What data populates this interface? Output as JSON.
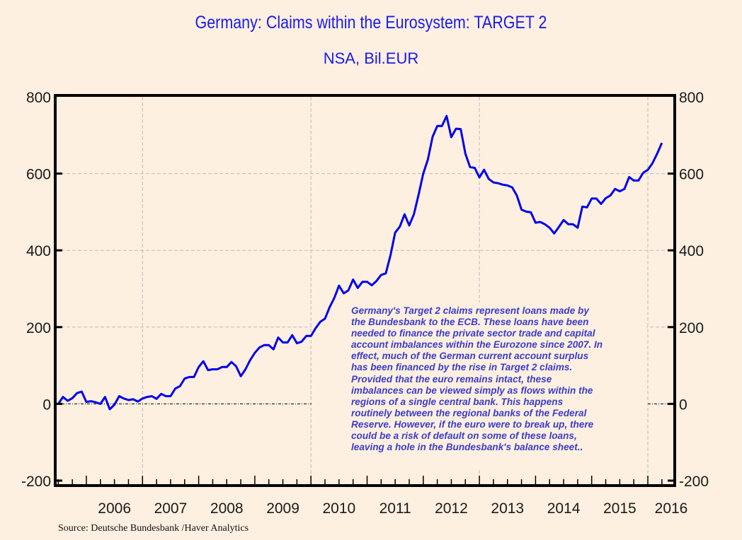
{
  "chart_data": {
    "type": "line",
    "title": "Germany: Claims within the Eurosystem: TARGET 2",
    "subtitle": "NSA, Bil.EUR",
    "xlabel": "",
    "ylabel": "",
    "ylim": [
      -200,
      800
    ],
    "yticks": [
      800,
      600,
      400,
      200,
      0,
      -200
    ],
    "ytick_labels": [
      "800",
      "600",
      "400",
      "200",
      "0",
      "-200"
    ],
    "x_start": "2005-07",
    "x_end": "2016-06",
    "x_frequency": "monthly",
    "xlim": [
      2005.45,
      2016.5
    ],
    "xtick_labels": [
      "2006",
      "2007",
      "2008",
      "2009",
      "2010",
      "2011",
      "2012",
      "2013",
      "2014",
      "2015",
      "2016"
    ],
    "grid": true,
    "legend": "none",
    "series": [
      {
        "name": "Germany: Claims within the Eurosystem: TARGET 2",
        "color": "#0000ee",
        "values": [
          0,
          18,
          8,
          15,
          28,
          32,
          5,
          7,
          4,
          0,
          18,
          -14,
          -2,
          20,
          14,
          10,
          12,
          6,
          14,
          18,
          20,
          13,
          26,
          20,
          20,
          40,
          46,
          66,
          70,
          70,
          96,
          111,
          88,
          90,
          90,
          96,
          96,
          109,
          98,
          72,
          90,
          114,
          133,
          147,
          153,
          153,
          142,
          173,
          160,
          160,
          179,
          158,
          162,
          177,
          177,
          197,
          214,
          222,
          252,
          276,
          308,
          288,
          296,
          324,
          302,
          318,
          318,
          309,
          320,
          336,
          340,
          387,
          446,
          462,
          494,
          465,
          494,
          545,
          600,
          637,
          696,
          724,
          724,
          750,
          695,
          717,
          716,
          652,
          617,
          615,
          590,
          610,
          586,
          577,
          575,
          571,
          569,
          564,
          543,
          506,
          501,
          499,
          472,
          474,
          468,
          459,
          444,
          461,
          479,
          468,
          468,
          459,
          514,
          512,
          535,
          535,
          521,
          536,
          543,
          560,
          554,
          560,
          591,
          582,
          582,
          602,
          610,
          627,
          652,
          680
        ]
      }
    ],
    "annotation": "Germany's Target 2 claims represent loans made by\nthe Bundesbank to the ECB. These loans have been\nneeded to finance the private sector trade and capital\naccount imbalances within the Eurozone since 2007. In\neffect, much of the German current account surplus\nhas been financed by the rise in Target 2 claims.\nProvided that the euro remains intact, these\nimbalances can be viewed simply as flows within the\nregions of a single central bank. This happens\nroutinely between the regional banks of the Federal\nReserve. However, if the euro were to break up, there\ncould be a risk of default on some of these loans,\nleaving a hole in the Bundesbank's balance sheet..",
    "source": "Source:  Deutsche Bundesbank /Haver Analytics"
  },
  "colors": {
    "background": "#fdf0e0",
    "title": "#1a1aee",
    "line": "#0000ee",
    "annotation": "#3c3cce",
    "grid": "#bbbbbb",
    "axis": "#000000"
  }
}
